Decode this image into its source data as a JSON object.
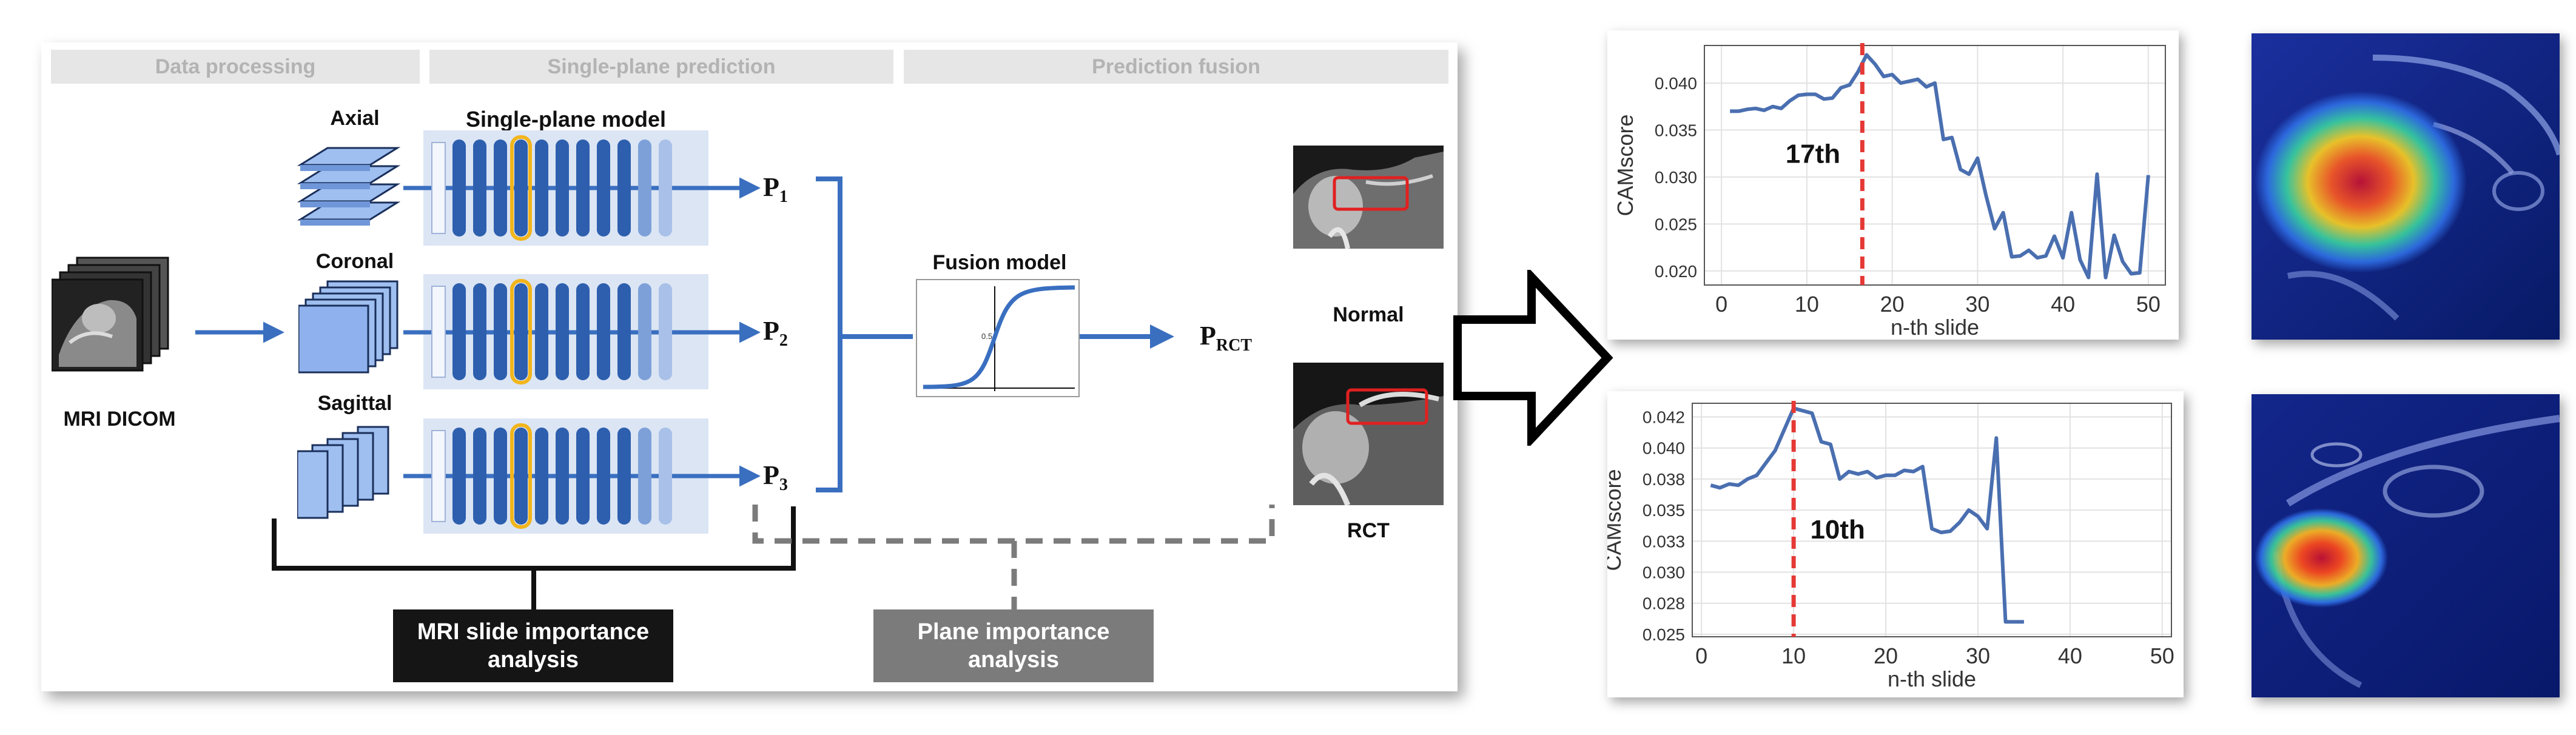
{
  "phases": {
    "data_processing": "Data processing",
    "single_plane": "Single-plane prediction",
    "fusion": "Prediction fusion"
  },
  "labels": {
    "mri_dicom": "MRI DICOM",
    "axial": "Axial",
    "coronal": "Coronal",
    "sagittal": "Sagittal",
    "single_plane_model": "Single-plane model",
    "fusion_model": "Fusion model",
    "fusion_mid_value": "0.5",
    "normal": "Normal",
    "rct": "RCT",
    "mri_slide_importance": [
      "MRI slide importance",
      "analysis"
    ],
    "plane_importance": [
      "Plane importance",
      "analysis"
    ]
  },
  "predictions": {
    "p1": {
      "base": "P",
      "sub": "1"
    },
    "p2": {
      "base": "P",
      "sub": "2"
    },
    "p3": {
      "base": "P",
      "sub": "3"
    },
    "prct": {
      "base": "P",
      "sub": "RCT"
    }
  },
  "colors": {
    "flow_blue": "#3a6fc0",
    "layer_blue": "#2e5fae",
    "model_bg": "#dbe5f4",
    "highlight_layer": "#f2b51c",
    "analysis_dark": "#151515",
    "analysis_gray": "#7b7b7b",
    "marker_red": "#e53935",
    "series_blue": "#4a6fb0"
  },
  "chart_data": [
    {
      "type": "line",
      "xlabel": "n-th slide",
      "ylabel": "CAMscore",
      "xlim": [
        -2,
        52
      ],
      "ylim": [
        0.0185,
        0.044
      ],
      "xticks": [
        0,
        10,
        20,
        30,
        40,
        50
      ],
      "yticks": [
        0.02,
        0.025,
        0.03,
        0.035,
        0.04
      ],
      "ytick_labels": [
        "0.020",
        "0.025",
        "0.030",
        "0.035",
        "0.040"
      ],
      "grid": true,
      "marker_x": 16.5,
      "annotation": "17th",
      "annotation_at": [
        7.5,
        0.0315
      ],
      "x": [
        1,
        2,
        3,
        4,
        5,
        6,
        7,
        8,
        9,
        10,
        11,
        12,
        13,
        14,
        15,
        16,
        17,
        18,
        19,
        20,
        21,
        22,
        23,
        24,
        25,
        26,
        27,
        28,
        29,
        30,
        31,
        32,
        33,
        34,
        35,
        36,
        37,
        38,
        39,
        40,
        41,
        42,
        43,
        44,
        45,
        46,
        47,
        48,
        49,
        50
      ],
      "y": [
        0.037,
        0.037,
        0.0372,
        0.0373,
        0.0371,
        0.0375,
        0.0373,
        0.0381,
        0.0387,
        0.0388,
        0.0388,
        0.0383,
        0.0384,
        0.0395,
        0.0398,
        0.0412,
        0.043,
        0.042,
        0.0407,
        0.0409,
        0.04,
        0.0402,
        0.0404,
        0.0396,
        0.04,
        0.034,
        0.0342,
        0.0308,
        0.0303,
        0.032,
        0.028,
        0.0245,
        0.0262,
        0.0215,
        0.0216,
        0.0222,
        0.0214,
        0.0216,
        0.0237,
        0.0214,
        0.0262,
        0.0212,
        0.0193,
        0.0303,
        0.0193,
        0.0238,
        0.021,
        0.0197,
        0.0198,
        0.0302
      ]
    },
    {
      "type": "line",
      "xlabel": "n-th slide",
      "ylabel": "CAMscore",
      "xlim": [
        -1,
        51
      ],
      "ylim": [
        0.0248,
        0.0436
      ],
      "xticks": [
        0,
        10,
        20,
        30,
        40,
        50
      ],
      "yticks": [
        0.025,
        0.0275,
        0.03,
        0.0325,
        0.035,
        0.0375,
        0.04,
        0.0425
      ],
      "ytick_labels": [
        "0.025",
        "0.028",
        "0.030",
        "0.033",
        "0.035",
        "0.038",
        "0.040",
        "0.042"
      ],
      "grid": true,
      "marker_x": 10,
      "annotation": "10th",
      "annotation_at": [
        11.8,
        0.0327
      ],
      "x": [
        1,
        2,
        3,
        4,
        5,
        6,
        7,
        8,
        9,
        10,
        11,
        12,
        13,
        14,
        15,
        16,
        17,
        18,
        19,
        20,
        21,
        22,
        23,
        24,
        25,
        26,
        27,
        28,
        29,
        30,
        31,
        32,
        33,
        34,
        35
      ],
      "y": [
        0.037,
        0.0368,
        0.0371,
        0.037,
        0.0375,
        0.0378,
        0.0388,
        0.0398,
        0.0415,
        0.0432,
        0.043,
        0.0428,
        0.0405,
        0.0403,
        0.0375,
        0.0381,
        0.0379,
        0.0381,
        0.0376,
        0.0378,
        0.0378,
        0.0382,
        0.0381,
        0.0385,
        0.0335,
        0.0332,
        0.0333,
        0.034,
        0.035,
        0.0345,
        0.0335,
        0.0408,
        0.026,
        0.026,
        0.026
      ]
    }
  ]
}
